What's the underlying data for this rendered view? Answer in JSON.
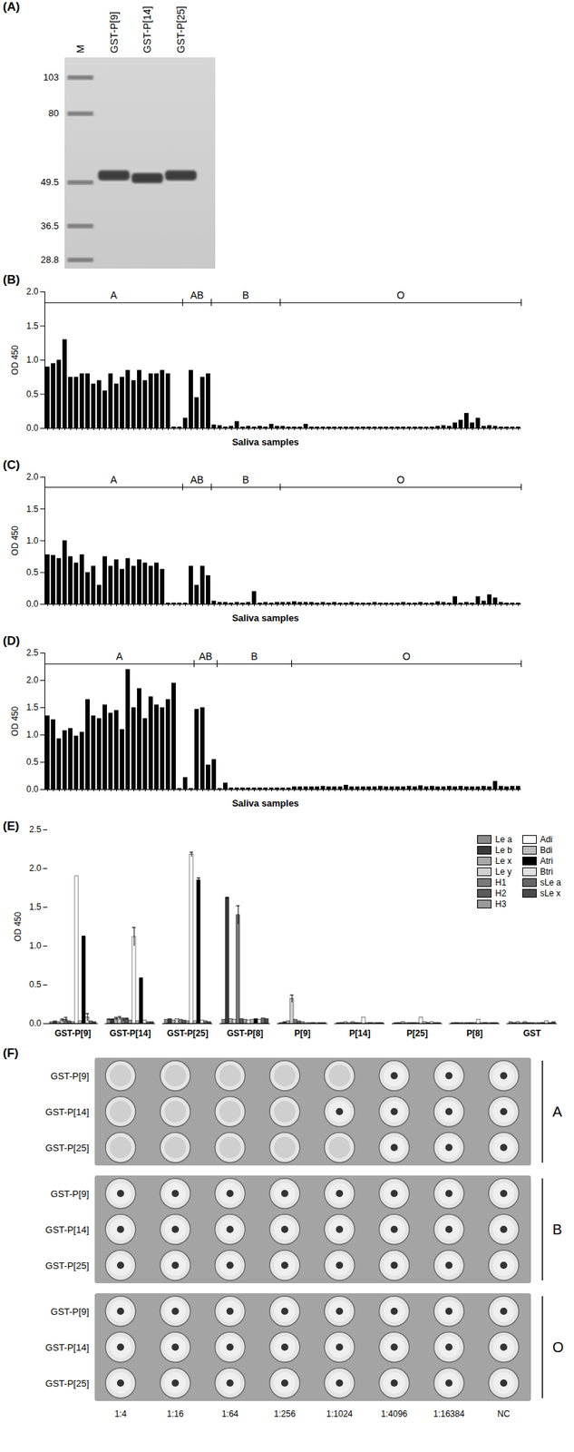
{
  "gel": {
    "title": "(A)",
    "lanes": [
      "M",
      "GST-P[9]",
      "GST-P[14]",
      "GST-P[25]"
    ],
    "markers": [
      103,
      80,
      49.5,
      36.5,
      28.8
    ],
    "bands": [
      null,
      52,
      51,
      52
    ]
  },
  "chart_data": [
    {
      "type": "bar",
      "title": "(B)",
      "x_label": "Saliva samples",
      "y_label": "OD 450",
      "color": "#000000",
      "categories": [
        null,
        null,
        null,
        null,
        null,
        null,
        null,
        null,
        null,
        null,
        null,
        null,
        null,
        null,
        null,
        null,
        null,
        null,
        null,
        null,
        null,
        null,
        null,
        null,
        null,
        null,
        null,
        null,
        null,
        null,
        null,
        null,
        null,
        null,
        null,
        null,
        null,
        null,
        null,
        null,
        null,
        null,
        null,
        null,
        null,
        null,
        null,
        null,
        null,
        null,
        null,
        null,
        null,
        null,
        null,
        null,
        null,
        null,
        null,
        null,
        null,
        null,
        null,
        null,
        null,
        null,
        null,
        null,
        null,
        null,
        null,
        null,
        null,
        null,
        null,
        null,
        null,
        null,
        null,
        null,
        null,
        null,
        null
      ],
      "values": [
        0.9,
        0.95,
        1.0,
        1.3,
        0.75,
        0.75,
        0.8,
        0.8,
        0.65,
        0.7,
        0.55,
        0.8,
        0.65,
        0.75,
        0.85,
        0.7,
        0.85,
        0.7,
        0.8,
        0.8,
        0.85,
        0.8,
        0.02,
        0.02,
        0.15,
        0.85,
        0.45,
        0.75,
        0.8,
        0.05,
        0.04,
        0.02,
        0.03,
        0.1,
        0.02,
        0.03,
        0.02,
        0.03,
        0.02,
        0.06,
        0.03,
        0.03,
        0.02,
        0.02,
        0.02,
        0.06,
        0.02,
        0.02,
        0.02,
        0.02,
        0.02,
        0.02,
        0.02,
        0.02,
        0.02,
        0.02,
        0.02,
        0.02,
        0.02,
        0.02,
        0.02,
        0.02,
        0.02,
        0.02,
        0.02,
        0.02,
        0.02,
        0.02,
        0.03,
        0.04,
        0.03,
        0.08,
        0.12,
        0.22,
        0.08,
        0.15,
        0.03,
        0.04,
        0.03,
        0.02,
        0.02,
        0.02,
        0.02
      ],
      "ylim": [
        0,
        2
      ],
      "yticks": [
        {
          "value": 0,
          "label": "0.0"
        },
        0.5,
        {
          "value": 1,
          "label": "1.0"
        },
        1.5,
        {
          "value": 2,
          "label": "2.0"
        }
      ],
      "annotations": [
        {
          "text": "A",
          "start": 0,
          "end": 23
        },
        {
          "text": "AB",
          "start": 24,
          "end": 28
        },
        {
          "text": "B",
          "start": 29,
          "end": 40
        },
        {
          "text": "O",
          "start": 41,
          "end": 82
        }
      ]
    },
    {
      "type": "bar",
      "title": "(C)",
      "x_label": "Saliva samples",
      "y_label": "OD 450",
      "color": "#000000",
      "categories": [
        null,
        null,
        null,
        null,
        null,
        null,
        null,
        null,
        null,
        null,
        null,
        null,
        null,
        null,
        null,
        null,
        null,
        null,
        null,
        null,
        null,
        null,
        null,
        null,
        null,
        null,
        null,
        null,
        null,
        null,
        null,
        null,
        null,
        null,
        null,
        null,
        null,
        null,
        null,
        null,
        null,
        null,
        null,
        null,
        null,
        null,
        null,
        null,
        null,
        null,
        null,
        null,
        null,
        null,
        null,
        null,
        null,
        null,
        null,
        null,
        null,
        null,
        null,
        null,
        null,
        null,
        null,
        null,
        null,
        null,
        null,
        null,
        null,
        null,
        null,
        null,
        null,
        null,
        null,
        null,
        null,
        null,
        null
      ],
      "values": [
        0.78,
        0.77,
        0.72,
        1.0,
        0.75,
        0.65,
        0.78,
        0.5,
        0.6,
        0.3,
        0.75,
        0.6,
        0.7,
        0.55,
        0.72,
        0.6,
        0.7,
        0.65,
        0.6,
        0.65,
        0.55,
        0.02,
        0.02,
        0.02,
        0.02,
        0.6,
        0.3,
        0.6,
        0.45,
        0.05,
        0.03,
        0.03,
        0.02,
        0.03,
        0.02,
        0.03,
        0.2,
        0.02,
        0.03,
        0.02,
        0.03,
        0.03,
        0.03,
        0.04,
        0.03,
        0.03,
        0.03,
        0.02,
        0.03,
        0.02,
        0.03,
        0.02,
        0.02,
        0.03,
        0.02,
        0.02,
        0.02,
        0.03,
        0.02,
        0.02,
        0.02,
        0.02,
        0.03,
        0.02,
        0.02,
        0.03,
        0.02,
        0.02,
        0.04,
        0.03,
        0.02,
        0.12,
        0.02,
        0.03,
        0.02,
        0.12,
        0.05,
        0.15,
        0.1,
        0.03,
        0.02,
        0.02,
        0.02
      ],
      "ylim": [
        0,
        2
      ],
      "yticks": [
        {
          "value": 0,
          "label": "0.0"
        },
        0.5,
        {
          "value": 1,
          "label": "1.0"
        },
        1.5,
        {
          "value": 2,
          "label": "2.0"
        }
      ],
      "annotations": [
        {
          "text": "A",
          "start": 0,
          "end": 23
        },
        {
          "text": "AB",
          "start": 24,
          "end": 28
        },
        {
          "text": "B",
          "start": 29,
          "end": 40
        },
        {
          "text": "O",
          "start": 41,
          "end": 82
        }
      ]
    },
    {
      "type": "bar",
      "title": "(D)",
      "x_label": "Saliva samples",
      "y_label": "OD 450",
      "color": "#000000",
      "categories": [
        null,
        null,
        null,
        null,
        null,
        null,
        null,
        null,
        null,
        null,
        null,
        null,
        null,
        null,
        null,
        null,
        null,
        null,
        null,
        null,
        null,
        null,
        null,
        null,
        null,
        null,
        null,
        null,
        null,
        null,
        null,
        null,
        null,
        null,
        null,
        null,
        null,
        null,
        null,
        null,
        null,
        null,
        null,
        null,
        null,
        null,
        null,
        null,
        null,
        null,
        null,
        null,
        null,
        null,
        null,
        null,
        null,
        null,
        null,
        null,
        null,
        null,
        null,
        null,
        null,
        null,
        null,
        null,
        null,
        null,
        null,
        null,
        null,
        null,
        null,
        null,
        null,
        null,
        null,
        null,
        null,
        null,
        null
      ],
      "values": [
        1.35,
        1.28,
        0.93,
        1.08,
        1.12,
        0.98,
        1.05,
        1.65,
        1.35,
        1.3,
        1.55,
        1.4,
        1.45,
        1.1,
        2.2,
        1.5,
        1.85,
        1.3,
        1.7,
        1.55,
        1.5,
        1.65,
        1.95,
        0.02,
        0.22,
        0.02,
        1.47,
        1.5,
        0.45,
        0.55,
        0.02,
        0.12,
        0.03,
        0.03,
        0.03,
        0.03,
        0.03,
        0.03,
        0.03,
        0.03,
        0.03,
        0.03,
        0.03,
        0.05,
        0.05,
        0.05,
        0.05,
        0.05,
        0.06,
        0.05,
        0.05,
        0.05,
        0.08,
        0.05,
        0.05,
        0.05,
        0.05,
        0.05,
        0.06,
        0.05,
        0.05,
        0.05,
        0.05,
        0.06,
        0.05,
        0.07,
        0.05,
        0.06,
        0.05,
        0.05,
        0.06,
        0.05,
        0.06,
        0.05,
        0.05,
        0.05,
        0.06,
        0.05,
        0.15,
        0.06,
        0.05,
        0.06,
        0.06
      ],
      "ylim": [
        0,
        2.5
      ],
      "yticks": [
        {
          "value": 0,
          "label": "0.0"
        },
        0.5,
        {
          "value": 1,
          "label": "1.0"
        },
        1.5,
        {
          "value": 2,
          "label": "2.0"
        },
        2.5
      ],
      "annotations": [
        {
          "text": "A",
          "start": 0,
          "end": 25
        },
        {
          "text": "AB",
          "start": 26,
          "end": 29
        },
        {
          "text": "B",
          "start": 30,
          "end": 42
        },
        {
          "text": "O",
          "start": 43,
          "end": 82
        }
      ]
    },
    {
      "type": "bar",
      "title": "(E)",
      "y_label": "OD 450",
      "legend": "top-right",
      "categories": [
        "GST-P[9]",
        "GST-P[14]",
        "GST-P[25]",
        "GST-P[8]",
        "P[9]",
        "P[14]",
        "P[25]",
        "P[8]",
        "GST"
      ],
      "ylim": [
        0,
        2.5
      ],
      "yticks": [
        {
          "value": 0,
          "label": "0.0"
        },
        0.5,
        {
          "value": 1,
          "label": "1.0"
        },
        1.5,
        {
          "value": 2,
          "label": "2.0"
        },
        2.5
      ],
      "series": [
        {
          "name": "Le a",
          "color": "#8c8c8c",
          "values": [
            0.02,
            0.05,
            0.05,
            0.05,
            0.01,
            0.01,
            0.01,
            0.01,
            0.02
          ],
          "errors": [
            0,
            0.01,
            0,
            0,
            0,
            0,
            0,
            0,
            0
          ]
        },
        {
          "name": "Le b",
          "color": "#3a3a3a",
          "values": [
            0.03,
            0.05,
            0.06,
            1.62,
            0.02,
            0.01,
            0.01,
            0.01,
            0.01
          ],
          "errors": [
            0,
            0.01,
            0,
            0.01,
            0,
            0,
            0,
            0,
            0
          ]
        },
        {
          "name": "Le x",
          "color": "#a8a8a8",
          "values": [
            0.02,
            0.06,
            0.04,
            0.06,
            0.03,
            0.02,
            0.02,
            0.01,
            0.02
          ],
          "errors": [
            0,
            0.02,
            0,
            0,
            0,
            0,
            0,
            0,
            0
          ]
        },
        {
          "name": "Le y",
          "color": "#d0d0d0",
          "values": [
            0.04,
            0.07,
            0.06,
            0.05,
            0.32,
            0.01,
            0.01,
            0.01,
            0.01
          ],
          "errors": [
            0.02,
            0.02,
            0,
            0,
            0.05,
            0,
            0,
            0,
            0
          ]
        },
        {
          "name": "H1",
          "color": "#7a7a7a",
          "values": [
            0.05,
            0.05,
            0.05,
            1.4,
            0.05,
            0.02,
            0.01,
            0.01,
            0.02
          ],
          "errors": [
            0.03,
            0.02,
            0,
            0.12,
            0,
            0,
            0,
            0,
            0
          ]
        },
        {
          "name": "H2",
          "color": "#5a5a5a",
          "values": [
            0.03,
            0.06,
            0.04,
            0.06,
            0.03,
            0.01,
            0.01,
            0.01,
            0.01
          ],
          "errors": [
            0,
            0.01,
            0,
            0,
            0,
            0,
            0,
            0,
            0
          ]
        },
        {
          "name": "H3",
          "color": "#9a9a9a",
          "values": [
            0.02,
            0.04,
            0.03,
            0.05,
            0.02,
            0.01,
            0.01,
            0.01,
            0.01
          ],
          "errors": [
            0,
            0,
            0,
            0,
            0,
            0,
            0,
            0,
            0
          ]
        },
        {
          "name": "Adi",
          "color": "#ffffff",
          "values": [
            1.9,
            1.12,
            2.18,
            0.04,
            0.01,
            0.08,
            0.08,
            0.05,
            0.01
          ],
          "errors": [
            0,
            0.12,
            0.03,
            0,
            0,
            0,
            0,
            0,
            0
          ]
        },
        {
          "name": "Bdi",
          "color": "#bcbcbc",
          "values": [
            0.03,
            0.03,
            0.03,
            0.05,
            0.01,
            0.01,
            0.02,
            0.01,
            0.01
          ],
          "errors": [
            0,
            0,
            0,
            0,
            0,
            0,
            0,
            0,
            0
          ]
        },
        {
          "name": "Atri",
          "color": "#000000",
          "values": [
            1.12,
            0.58,
            1.85,
            0.06,
            0.01,
            0.01,
            0.01,
            0.01,
            0.01
          ],
          "errors": [
            0.01,
            0.01,
            0.03,
            0,
            0,
            0,
            0,
            0,
            0
          ]
        },
        {
          "name": "Btri",
          "color": "#e2e2e2",
          "values": [
            0.08,
            0.04,
            0.04,
            0.05,
            0.01,
            0.01,
            0.02,
            0.01,
            0.03
          ],
          "errors": [
            0.05,
            0,
            0,
            0,
            0,
            0,
            0,
            0,
            0
          ]
        },
        {
          "name": "sLe a",
          "color": "#666666",
          "values": [
            0.03,
            0.02,
            0.03,
            0.07,
            0.01,
            0.01,
            0.01,
            0.01,
            0.01
          ],
          "errors": [
            0,
            0,
            0,
            0,
            0,
            0,
            0,
            0,
            0
          ]
        },
        {
          "name": "sLe x",
          "color": "#4a4a4a",
          "values": [
            0.02,
            0.02,
            0.02,
            0.06,
            0.01,
            0.01,
            0.01,
            0.01,
            0.02
          ],
          "errors": [
            0,
            0,
            0,
            0,
            0,
            0,
            0,
            0,
            0
          ]
        }
      ]
    }
  ],
  "plate": {
    "title": "(F)",
    "columns": [
      "1:4",
      "1:16",
      "1:64",
      "1:256",
      "1:1024",
      "1:4096",
      "1:16384",
      "NC"
    ],
    "groups": [
      {
        "label": "A",
        "rows": [
          {
            "label": "GST-P[9]",
            "agglutination": [
              true,
              true,
              true,
              true,
              true,
              false,
              false,
              false
            ]
          },
          {
            "label": "GST-P[14]",
            "agglutination": [
              true,
              true,
              true,
              true,
              false,
              false,
              false,
              false
            ]
          },
          {
            "label": "GST-P[25]",
            "agglutination": [
              true,
              true,
              true,
              true,
              true,
              false,
              false,
              false
            ]
          }
        ]
      },
      {
        "label": "B",
        "rows": [
          {
            "label": "GST-P[9]",
            "agglutination": [
              false,
              false,
              false,
              false,
              false,
              false,
              false,
              false
            ]
          },
          {
            "label": "GST-P[14]",
            "agglutination": [
              false,
              false,
              false,
              false,
              false,
              false,
              false,
              false
            ]
          },
          {
            "label": "GST-P[25]",
            "agglutination": [
              false,
              false,
              false,
              false,
              false,
              false,
              false,
              false
            ]
          }
        ]
      },
      {
        "label": "O",
        "rows": [
          {
            "label": "GST-P[9]",
            "agglutination": [
              false,
              false,
              false,
              false,
              false,
              false,
              false,
              false
            ]
          },
          {
            "label": "GST-P[14]",
            "agglutination": [
              false,
              false,
              false,
              false,
              false,
              false,
              false,
              false
            ]
          },
          {
            "label": "GST-P[25]",
            "agglutination": [
              false,
              false,
              false,
              false,
              false,
              false,
              false,
              false
            ]
          }
        ]
      }
    ]
  }
}
